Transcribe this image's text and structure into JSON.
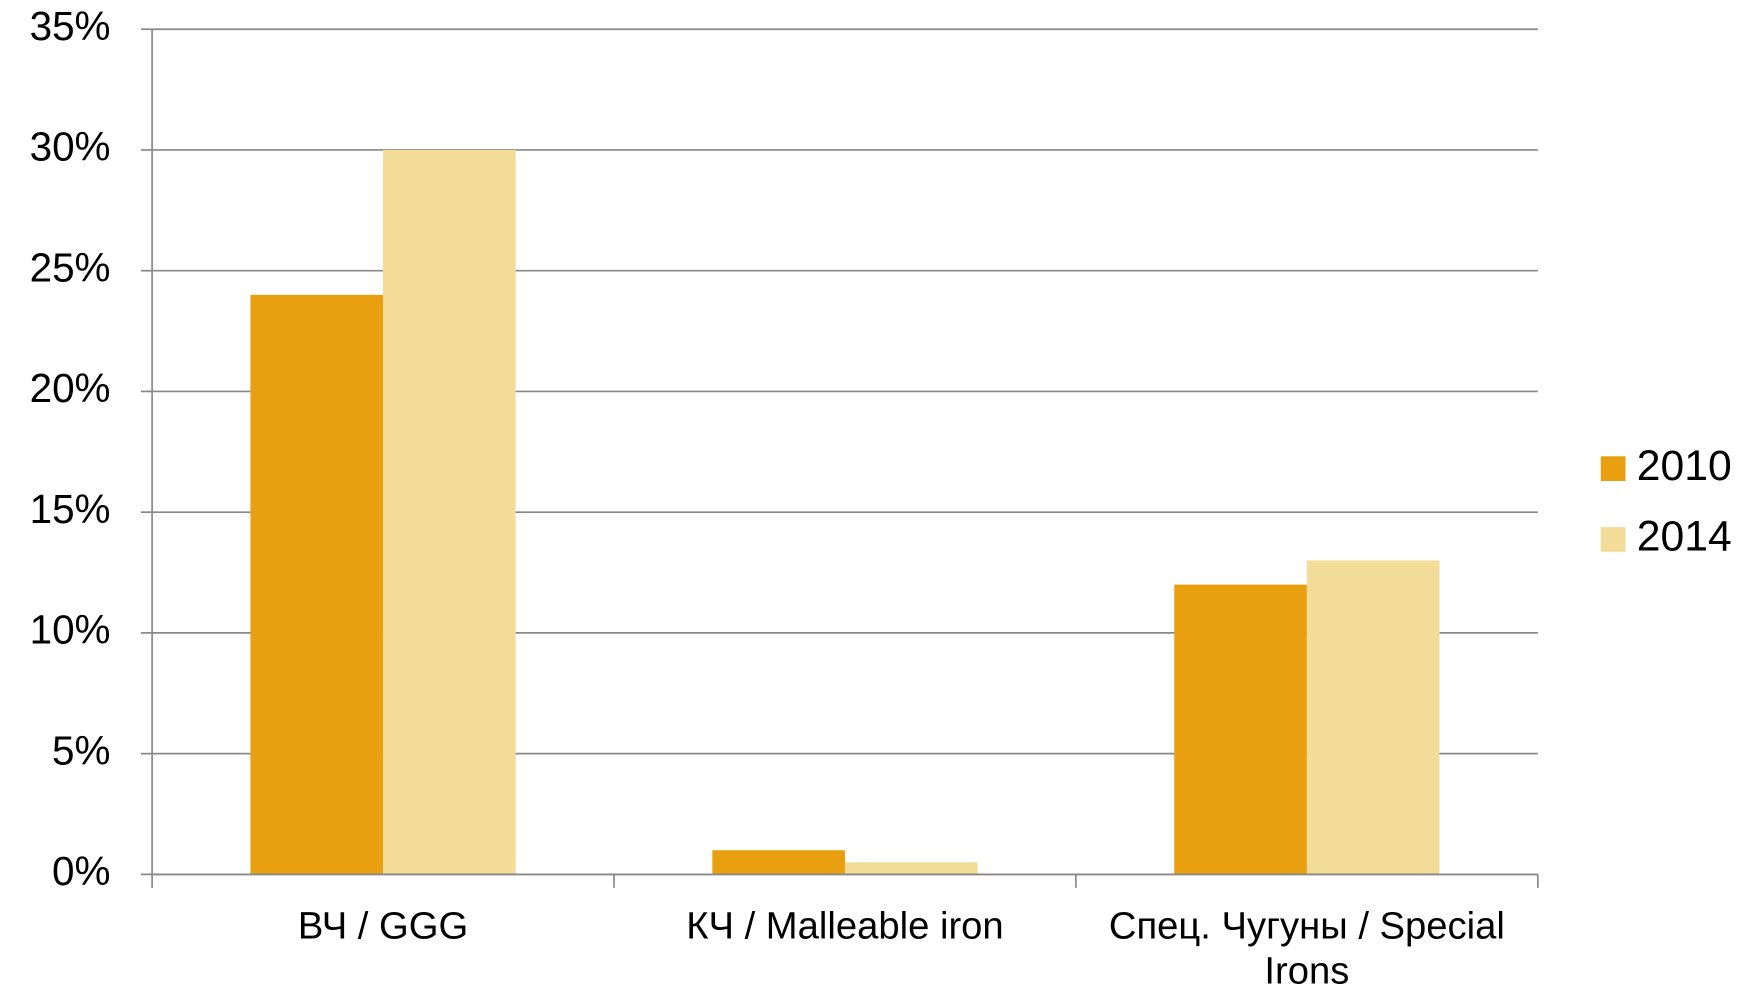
{
  "chart_data": {
    "type": "bar",
    "categories": [
      "ВЧ / GGG",
      "КЧ / Malleable iron",
      "Спец. Чугуны / Special Irons"
    ],
    "series": [
      {
        "name": "2010",
        "color": "#e8a010",
        "values": [
          24,
          1,
          12
        ]
      },
      {
        "name": "2014",
        "color": "#f2dc98",
        "values": [
          30,
          0.5,
          13
        ]
      }
    ],
    "ylim": [
      0,
      35
    ],
    "yticks": [
      {
        "value": 0,
        "label": "0%"
      },
      {
        "value": 5,
        "label": "5%"
      },
      {
        "value": 10,
        "label": "10%"
      },
      {
        "value": 15,
        "label": "15%"
      },
      {
        "value": 20,
        "label": "20%"
      },
      {
        "value": 25,
        "label": "25%"
      },
      {
        "value": 30,
        "label": "30%"
      },
      {
        "value": 35,
        "label": "35%"
      }
    ],
    "grid": true,
    "legend": "right"
  }
}
